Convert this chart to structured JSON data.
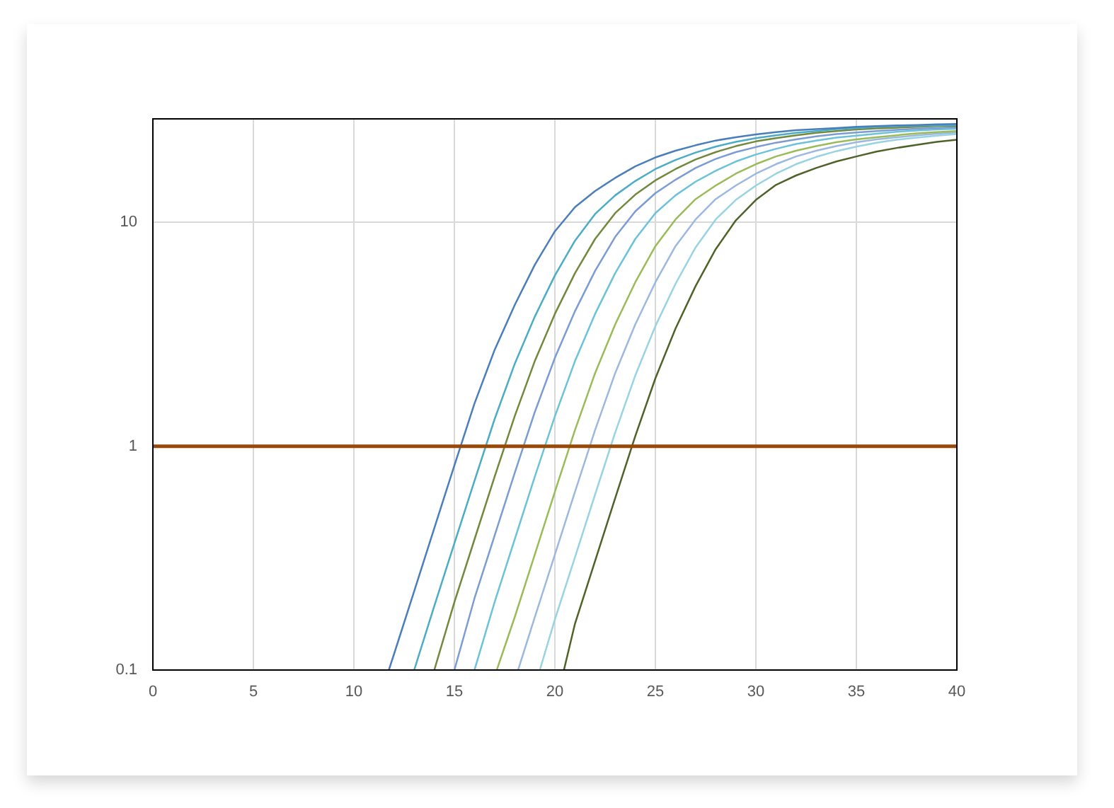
{
  "chart_data": {
    "type": "line",
    "log": true,
    "grid": true,
    "marker": "none",
    "line_style": "solid",
    "xlim": [
      0,
      40
    ],
    "xticks": [
      0,
      5,
      10,
      15,
      20,
      25,
      30,
      35,
      40
    ],
    "ylim": [
      0.1,
      29
    ],
    "yticks": [
      0.1,
      1,
      10
    ],
    "ref_lines": [
      {
        "axis": "y",
        "value": 1,
        "color": "#984807"
      }
    ],
    "series": [
      {
        "color": "#4a7ebb",
        "x": [
          11.74,
          12,
          13,
          14,
          15,
          16,
          17,
          18,
          19,
          20,
          21,
          22,
          23,
          24,
          25,
          26,
          27,
          28,
          29,
          30,
          31,
          32,
          33,
          34,
          35,
          36,
          37,
          38,
          39,
          40
        ],
        "values": [
          0.1,
          0.118,
          0.225,
          0.43,
          0.82,
          1.55,
          2.69,
          4.27,
          6.46,
          9.12,
          11.7,
          13.8,
          15.8,
          17.8,
          19.5,
          20.9,
          22.1,
          23.2,
          24.0,
          24.7,
          25.3,
          25.8,
          26.1,
          26.4,
          26.7,
          26.9,
          27.1,
          27.2,
          27.4,
          27.5
        ]
      },
      {
        "color": "#4bacc6",
        "x": [
          13,
          14,
          15,
          16,
          17,
          18,
          19,
          20,
          21,
          22,
          23,
          24,
          25,
          26,
          27,
          28,
          29,
          30,
          31,
          32,
          33,
          34,
          35,
          36,
          37,
          38,
          39,
          40
        ],
        "values": [
          0.1,
          0.193,
          0.368,
          0.7,
          1.32,
          2.33,
          3.79,
          5.79,
          8.28,
          10.9,
          13.2,
          15.3,
          17.3,
          19.0,
          20.5,
          21.8,
          22.9,
          23.8,
          24.5,
          25.1,
          25.6,
          26.1,
          26.4,
          26.7,
          26.9,
          27.0,
          27.1,
          27.2
        ]
      },
      {
        "color": "#72893d",
        "x": [
          14,
          15,
          16,
          17,
          18,
          19,
          20,
          21,
          22,
          23,
          24,
          25,
          26,
          27,
          28,
          29,
          30,
          31,
          32,
          33,
          34,
          35,
          36,
          37,
          38,
          39,
          40
        ],
        "values": [
          0.1,
          0.201,
          0.383,
          0.73,
          1.36,
          2.4,
          3.9,
          5.93,
          8.43,
          11.0,
          13.3,
          15.4,
          17.3,
          19.1,
          20.6,
          21.9,
          23.0,
          23.8,
          24.5,
          25.1,
          25.6,
          26.0,
          26.3,
          26.5,
          26.7,
          26.9,
          27.0
        ]
      },
      {
        "color": "#7b9cd3",
        "x": [
          15,
          16,
          17,
          18,
          19,
          20,
          21,
          22,
          23,
          24,
          25,
          26,
          27,
          28,
          29,
          30,
          31,
          32,
          33,
          34,
          35,
          36,
          37,
          38,
          39,
          40
        ],
        "values": [
          0.1,
          0.209,
          0.398,
          0.759,
          1.42,
          2.48,
          4.01,
          6.07,
          8.61,
          11.2,
          13.5,
          15.5,
          17.5,
          19.2,
          20.6,
          21.7,
          22.7,
          23.5,
          24.2,
          24.8,
          25.2,
          25.6,
          25.9,
          26.2,
          26.4,
          26.6
        ]
      },
      {
        "color": "#6cc3d9",
        "x": [
          16,
          17,
          18,
          19,
          20,
          21,
          22,
          23,
          24,
          25,
          26,
          27,
          28,
          29,
          30,
          31,
          32,
          33,
          34,
          35,
          36,
          37,
          38,
          39,
          40
        ],
        "values": [
          0.1,
          0.201,
          0.383,
          0.73,
          1.36,
          2.4,
          3.9,
          5.93,
          8.43,
          11.0,
          13.2,
          15.2,
          17.0,
          18.7,
          20.1,
          21.3,
          22.4,
          23.2,
          23.9,
          24.4,
          24.9,
          25.4,
          25.7,
          26.0,
          26.2
        ]
      },
      {
        "color": "#9bbb59",
        "x": [
          17.11,
          18,
          19,
          20,
          21,
          22,
          23,
          24,
          25,
          26,
          27,
          28,
          29,
          30,
          31,
          32,
          33,
          34,
          35,
          36,
          37,
          38,
          39,
          40
        ],
        "values": [
          0.1,
          0.172,
          0.328,
          0.625,
          1.18,
          2.12,
          3.5,
          5.4,
          7.83,
          10.3,
          12.7,
          14.6,
          16.5,
          18.2,
          19.7,
          20.9,
          21.9,
          22.8,
          23.5,
          24.0,
          24.5,
          25.0,
          25.3,
          25.6
        ]
      },
      {
        "color": "#9db8e0",
        "x": [
          18.17,
          19,
          20,
          21,
          22,
          23,
          24,
          25,
          26,
          27,
          28,
          29,
          30,
          31,
          32,
          33,
          34,
          35,
          36,
          37,
          38,
          39,
          40
        ],
        "values": [
          0.1,
          0.172,
          0.328,
          0.625,
          1.18,
          2.12,
          3.5,
          5.4,
          7.83,
          10.3,
          12.7,
          14.6,
          16.5,
          18.2,
          19.7,
          20.9,
          21.9,
          22.8,
          23.5,
          24.0,
          24.5,
          24.9,
          25.2
        ]
      },
      {
        "color": "#98d3e3",
        "x": [
          19.25,
          20,
          21,
          22,
          23,
          24,
          25,
          26,
          27,
          28,
          29,
          30,
          31,
          32,
          33,
          34,
          35,
          36,
          37,
          38,
          39,
          40
        ],
        "values": [
          0.1,
          0.168,
          0.319,
          0.608,
          1.15,
          2.07,
          3.44,
          5.31,
          7.73,
          10.3,
          12.6,
          14.6,
          16.5,
          18.2,
          19.6,
          20.8,
          21.8,
          22.7,
          23.4,
          23.9,
          24.4,
          24.8
        ]
      },
      {
        "color": "#4f6228",
        "x": [
          20.45,
          21,
          22,
          23,
          24,
          25,
          26,
          27,
          28,
          29,
          30,
          31,
          32,
          33,
          34,
          35,
          36,
          37,
          38,
          39,
          40
        ],
        "values": [
          0.1,
          0.161,
          0.307,
          0.586,
          1.11,
          2.01,
          3.35,
          5.19,
          7.59,
          10.2,
          12.6,
          14.7,
          16.2,
          17.5,
          18.7,
          19.7,
          20.7,
          21.5,
          22.2,
          22.9,
          23.4
        ]
      }
    ]
  }
}
